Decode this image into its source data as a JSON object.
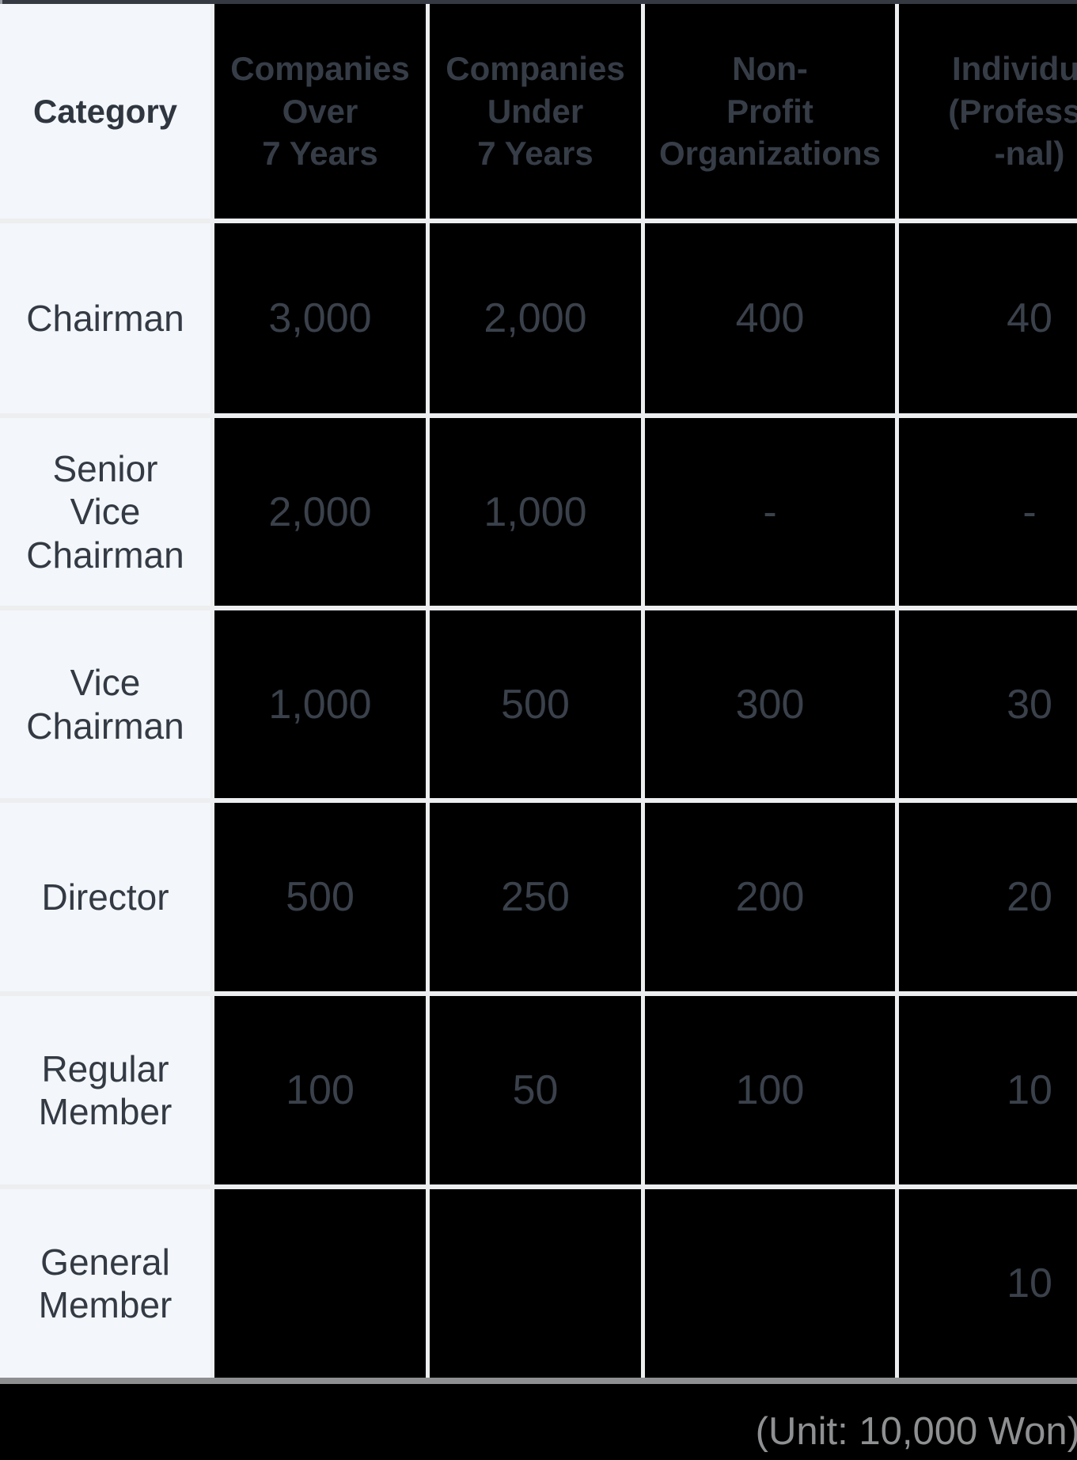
{
  "table": {
    "columns": [
      {
        "key": "category",
        "label": "Category"
      },
      {
        "key": "over7",
        "label": "Companies\nOver\n7 Years"
      },
      {
        "key": "under7",
        "label": "Companies\nUnder\n7 Years"
      },
      {
        "key": "nonprofit",
        "label": "Non-\nProfit\nOrganizations"
      },
      {
        "key": "individual",
        "label": "Individual\n(Professio\n-nal)"
      }
    ],
    "rows": [
      {
        "label": "Chairman",
        "values": [
          "3,000",
          "2,000",
          "400",
          "40"
        ]
      },
      {
        "label": "Senior\nVice\nChairman",
        "values": [
          "2,000",
          "1,000",
          "-",
          "-"
        ]
      },
      {
        "label": "Vice\nChairman",
        "values": [
          "1,000",
          "500",
          "300",
          "30"
        ]
      },
      {
        "label": "Director",
        "values": [
          "500",
          "250",
          "200",
          "20"
        ]
      },
      {
        "label": "Regular\nMember",
        "values": [
          "100",
          "50",
          "100",
          "10"
        ]
      },
      {
        "label": "General\nMember",
        "values": [
          "",
          "",
          "",
          "10"
        ]
      }
    ]
  },
  "footer": {
    "unit_note": "(Unit: 10,000 Won)"
  },
  "colors": {
    "top_bar": "#353a42",
    "category_column_bg": "#f3f6fa",
    "data_cell_bg": "#000000",
    "grid_line": "#eceeef",
    "header_text": "#363d47",
    "value_text": "#3a414b",
    "category_text": "#333a43",
    "bottom_rule": "#8d8f90",
    "unit_note_text": "#8e9092"
  }
}
